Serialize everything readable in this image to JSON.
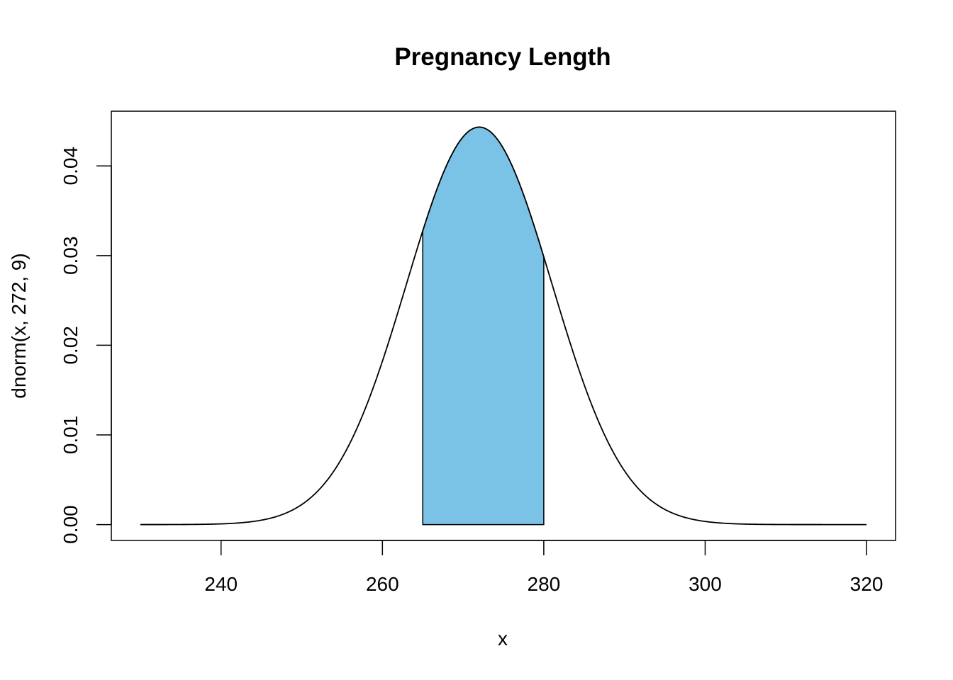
{
  "chart_data": {
    "type": "area",
    "title": "Pregnancy Length",
    "xlabel": "x",
    "ylabel": "dnorm(x, 272, 9)",
    "distribution": {
      "mean": 272,
      "sd": 9
    },
    "curve_x_range": [
      230,
      320
    ],
    "shaded_region": {
      "from": 265,
      "to": 280,
      "color": "#7ac3e6"
    },
    "xlim": [
      226.4,
      323.6
    ],
    "ylim": [
      -0.00177,
      0.0461
    ],
    "x_ticks": [
      240,
      260,
      280,
      300,
      320
    ],
    "x_tick_labels": [
      "240",
      "260",
      "280",
      "300",
      "320"
    ],
    "y_ticks": [
      0,
      0.01,
      0.02,
      0.03,
      0.04
    ],
    "y_tick_labels": [
      "0.00",
      "0.01",
      "0.02",
      "0.03",
      "0.04"
    ],
    "grid": false,
    "line_color": "#000000"
  }
}
